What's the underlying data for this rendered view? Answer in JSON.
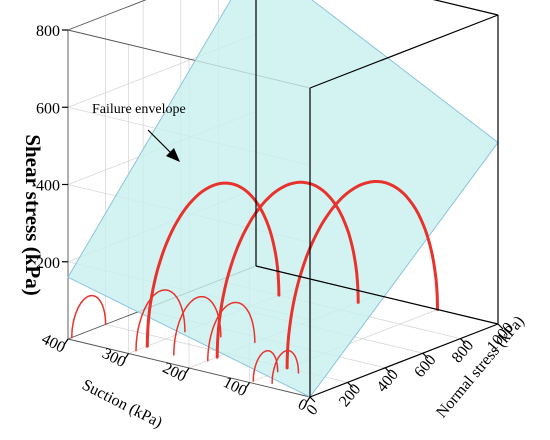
{
  "chart_data": {
    "type": "3d-surface",
    "title": "",
    "xlabel": "Normal stress (kPa)",
    "ylabel": "Suction (kPa)",
    "zlabel": "Shear stress (kPa)",
    "xlim": [
      0,
      1000
    ],
    "ylim": [
      0,
      400
    ],
    "zlim": [
      0,
      800
    ],
    "x_ticks": [
      "0",
      "200",
      "400",
      "600",
      "800",
      "1000"
    ],
    "y_ticks": [
      "0",
      "100",
      "200",
      "300",
      "400"
    ],
    "z_ticks": [
      "200",
      "400",
      "600",
      "800"
    ],
    "annotation": "Failure envelope",
    "envelope": {
      "corners": [
        {
          "sigma": 0,
          "suction": 0,
          "tau": 0
        },
        {
          "sigma": 1000,
          "suction": 0,
          "tau": 470
        },
        {
          "sigma": 1000,
          "suction": 400,
          "tau": 800
        },
        {
          "sigma": 0,
          "suction": 400,
          "tau": 160
        }
      ]
    },
    "mohr_circles": [
      {
        "suction": 400,
        "sigma_min": 20,
        "sigma_max": 200,
        "group": "thin"
      },
      {
        "suction": 300,
        "sigma_min": 40,
        "sigma_max": 300,
        "group": "thin"
      },
      {
        "suction": 250,
        "sigma_min": 80,
        "sigma_max": 330,
        "group": "thin"
      },
      {
        "suction": 200,
        "sigma_min": 100,
        "sigma_max": 350,
        "group": "thin"
      },
      {
        "suction": 100,
        "sigma_min": 20,
        "sigma_max": 150,
        "group": "thin"
      },
      {
        "suction": 75,
        "sigma_min": 40,
        "sigma_max": 180,
        "group": "thin"
      },
      {
        "suction": 300,
        "sigma_min": 100,
        "sigma_max": 800,
        "group": "thick"
      },
      {
        "suction": 200,
        "sigma_min": 150,
        "sigma_max": 900,
        "group": "thick"
      },
      {
        "suction": 100,
        "sigma_min": 200,
        "sigma_max": 1000,
        "group": "thick"
      }
    ],
    "colors": {
      "envelope_fill": "#c8f0f0",
      "envelope_stroke": "#8cc4dc",
      "circle": "#e8332d",
      "box": "#000000",
      "grid": "#d8d8d8"
    }
  }
}
